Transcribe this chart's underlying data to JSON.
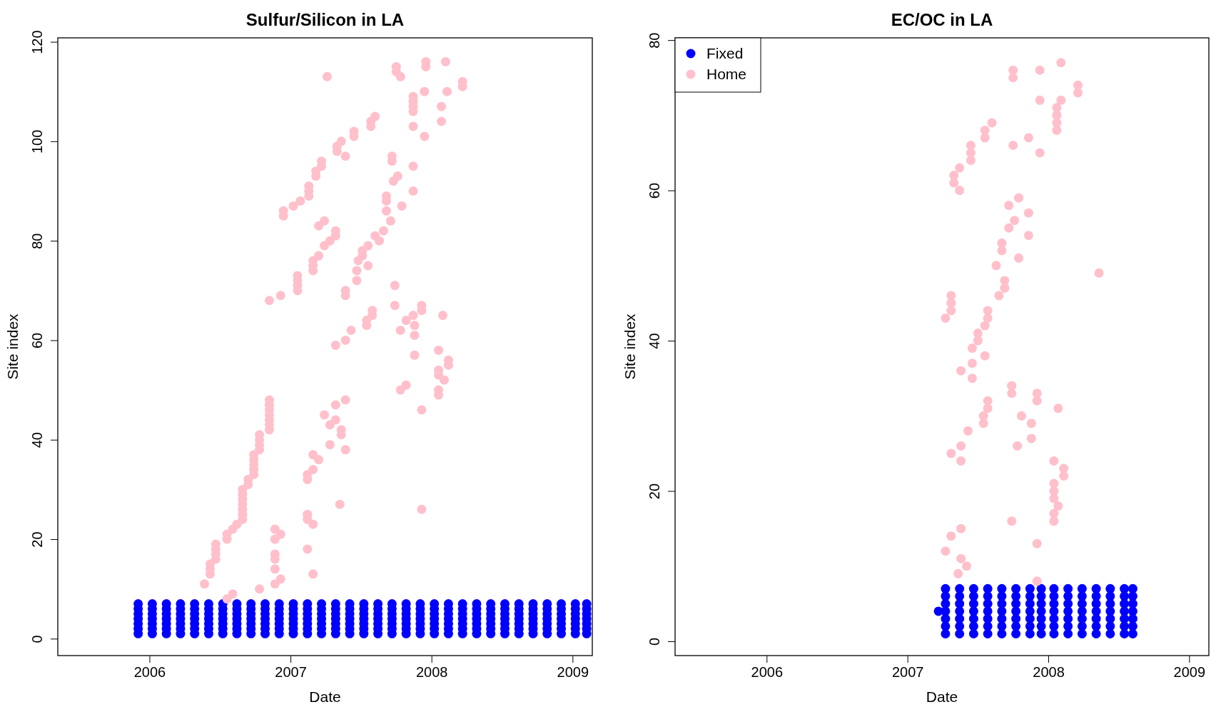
{
  "chart_data": [
    {
      "type": "scatter",
      "title": "Sulfur/Silicon in LA",
      "xlabel": "Date",
      "ylabel": "Site index",
      "xlim": [
        2005.35,
        2009.14
      ],
      "ylim": [
        -3.4,
        120.8
      ],
      "xticks": [
        2006,
        2007,
        2008,
        2009
      ],
      "yticks": [
        0,
        20,
        40,
        60,
        80,
        100,
        120
      ],
      "legend": false,
      "marker": "circle",
      "series": [
        {
          "color": "#0000ff",
          "x": [
            2005.92,
            2005.92,
            2005.92,
            2005.92,
            2005.92,
            2005.92,
            2005.92,
            2006.02,
            2006.02,
            2006.02,
            2006.02,
            2006.02,
            2006.02,
            2006.02,
            2006.12,
            2006.12,
            2006.12,
            2006.12,
            2006.12,
            2006.12,
            2006.12,
            2006.22,
            2006.22,
            2006.22,
            2006.22,
            2006.22,
            2006.22,
            2006.22,
            2006.32,
            2006.32,
            2006.32,
            2006.32,
            2006.32,
            2006.32,
            2006.32,
            2006.42,
            2006.42,
            2006.42,
            2006.42,
            2006.42,
            2006.42,
            2006.42,
            2006.52,
            2006.52,
            2006.52,
            2006.52,
            2006.52,
            2006.52,
            2006.52,
            2006.62,
            2006.62,
            2006.62,
            2006.62,
            2006.62,
            2006.62,
            2006.62,
            2006.72,
            2006.72,
            2006.72,
            2006.72,
            2006.72,
            2006.72,
            2006.72,
            2006.82,
            2006.82,
            2006.82,
            2006.82,
            2006.82,
            2006.82,
            2006.82,
            2006.92,
            2006.92,
            2006.92,
            2006.92,
            2006.92,
            2006.92,
            2006.92,
            2007.02,
            2007.02,
            2007.02,
            2007.02,
            2007.02,
            2007.02,
            2007.02,
            2007.12,
            2007.12,
            2007.12,
            2007.12,
            2007.12,
            2007.12,
            2007.12,
            2007.22,
            2007.22,
            2007.22,
            2007.22,
            2007.22,
            2007.22,
            2007.22,
            2007.32,
            2007.32,
            2007.32,
            2007.32,
            2007.32,
            2007.32,
            2007.32,
            2007.42,
            2007.42,
            2007.42,
            2007.42,
            2007.42,
            2007.42,
            2007.42,
            2007.52,
            2007.52,
            2007.52,
            2007.52,
            2007.52,
            2007.52,
            2007.52,
            2007.62,
            2007.62,
            2007.62,
            2007.62,
            2007.62,
            2007.62,
            2007.62,
            2007.72,
            2007.72,
            2007.72,
            2007.72,
            2007.72,
            2007.72,
            2007.72,
            2007.82,
            2007.82,
            2007.82,
            2007.82,
            2007.82,
            2007.82,
            2007.82,
            2007.92,
            2007.92,
            2007.92,
            2007.92,
            2007.92,
            2007.92,
            2007.92,
            2008.02,
            2008.02,
            2008.02,
            2008.02,
            2008.02,
            2008.02,
            2008.02,
            2008.12,
            2008.12,
            2008.12,
            2008.12,
            2008.12,
            2008.12,
            2008.12,
            2008.22,
            2008.22,
            2008.22,
            2008.22,
            2008.22,
            2008.22,
            2008.22,
            2008.32,
            2008.32,
            2008.32,
            2008.32,
            2008.32,
            2008.32,
            2008.32,
            2008.42,
            2008.42,
            2008.42,
            2008.42,
            2008.42,
            2008.42,
            2008.42,
            2008.52,
            2008.52,
            2008.52,
            2008.52,
            2008.52,
            2008.52,
            2008.52,
            2008.62,
            2008.62,
            2008.62,
            2008.62,
            2008.62,
            2008.62,
            2008.62,
            2008.72,
            2008.72,
            2008.72,
            2008.72,
            2008.72,
            2008.72,
            2008.72,
            2008.82,
            2008.82,
            2008.82,
            2008.82,
            2008.82,
            2008.82,
            2008.82,
            2008.92,
            2008.92,
            2008.92,
            2008.92,
            2008.92,
            2008.92,
            2008.92,
            2009.02,
            2009.02,
            2009.02,
            2009.02,
            2009.02,
            2009.02,
            2009.02,
            2009.1,
            2009.1,
            2009.1,
            2009.1,
            2009.1,
            2009.1,
            2009.1
          ],
          "values": [
            1,
            2,
            3,
            4,
            5,
            6,
            7,
            1,
            2,
            3,
            4,
            5,
            6,
            7,
            1,
            2,
            3,
            4,
            5,
            6,
            7,
            1,
            2,
            3,
            4,
            5,
            6,
            7,
            1,
            2,
            3,
            4,
            5,
            6,
            7,
            1,
            2,
            3,
            4,
            5,
            6,
            7,
            1,
            2,
            3,
            4,
            5,
            6,
            7,
            1,
            2,
            3,
            4,
            5,
            6,
            7,
            1,
            2,
            3,
            4,
            5,
            6,
            7,
            1,
            2,
            3,
            4,
            5,
            6,
            7,
            1,
            2,
            3,
            4,
            5,
            6,
            7,
            1,
            2,
            3,
            4,
            5,
            6,
            7,
            1,
            2,
            3,
            4,
            5,
            6,
            7,
            1,
            2,
            3,
            4,
            5,
            6,
            7,
            1,
            2,
            3,
            4,
            5,
            6,
            7,
            1,
            2,
            3,
            4,
            5,
            6,
            7,
            1,
            2,
            3,
            4,
            5,
            6,
            7,
            1,
            2,
            3,
            4,
            5,
            6,
            7,
            1,
            2,
            3,
            4,
            5,
            6,
            7,
            1,
            2,
            3,
            4,
            5,
            6,
            7,
            1,
            2,
            3,
            4,
            5,
            6,
            7,
            1,
            2,
            3,
            4,
            5,
            6,
            7,
            1,
            2,
            3,
            4,
            5,
            6,
            7,
            1,
            2,
            3,
            4,
            5,
            6,
            7,
            1,
            2,
            3,
            4,
            5,
            6,
            7,
            1,
            2,
            3,
            4,
            5,
            6,
            7,
            1,
            2,
            3,
            4,
            5,
            6,
            7,
            1,
            2,
            3,
            4,
            5,
            6,
            7,
            1,
            2,
            3,
            4,
            5,
            6,
            7,
            1,
            2,
            3,
            4,
            5,
            6,
            7,
            1,
            2,
            3,
            4,
            5,
            6,
            7,
            1,
            2,
            3,
            4,
            5,
            6,
            7,
            1,
            2,
            3,
            4,
            5,
            6,
            7
          ]
        },
        {
          "color": "#ffc0cb",
          "x": [
            2006.39,
            2006.43,
            2006.43,
            2006.43,
            2006.47,
            2006.47,
            2006.47,
            2006.47,
            2006.55,
            2006.55,
            2006.55,
            2006.59,
            2006.59,
            2006.62,
            2006.66,
            2006.66,
            2006.66,
            2006.66,
            2006.66,
            2006.66,
            2006.66,
            2006.7,
            2006.7,
            2006.74,
            2006.74,
            2006.74,
            2006.74,
            2006.74,
            2006.78,
            2006.78,
            2006.78,
            2006.78,
            2006.78,
            2006.85,
            2006.85,
            2006.85,
            2006.85,
            2006.85,
            2006.85,
            2006.85,
            2006.85,
            2006.89,
            2006.89,
            2006.89,
            2006.89,
            2006.89,
            2006.89,
            2006.93,
            2006.93,
            2006.93,
            2006.95,
            2006.95,
            2007.02,
            2007.05,
            2007.05,
            2007.05,
            2007.05,
            2007.07,
            2007.12,
            2007.12,
            2007.12,
            2007.12,
            2007.12,
            2007.13,
            2007.13,
            2007.13,
            2007.16,
            2007.16,
            2007.16,
            2007.16,
            2007.16,
            2007.16,
            2007.16,
            2007.18,
            2007.18,
            2007.2,
            2007.2,
            2007.2,
            2007.22,
            2007.22,
            2007.24,
            2007.24,
            2007.24,
            2007.26,
            2007.28,
            2007.28,
            2007.28,
            2007.32,
            2007.32,
            2007.32,
            2007.32,
            2007.32,
            2007.33,
            2007.33,
            2007.35,
            2007.36,
            2007.36,
            2007.36,
            2007.39,
            2007.39,
            2007.39,
            2007.39,
            2007.39,
            2007.39,
            2007.43,
            2007.45,
            2007.45,
            2007.47,
            2007.47,
            2007.48,
            2007.51,
            2007.51,
            2007.54,
            2007.54,
            2007.55,
            2007.55,
            2007.57,
            2007.57,
            2007.58,
            2007.58,
            2007.6,
            2007.6,
            2007.63,
            2007.66,
            2007.68,
            2007.68,
            2007.68,
            2007.71,
            2007.72,
            2007.72,
            2007.73,
            2007.74,
            2007.74,
            2007.75,
            2007.75,
            2007.76,
            2007.78,
            2007.78,
            2007.78,
            2007.79,
            2007.82,
            2007.82,
            2007.87,
            2007.87,
            2007.87,
            2007.87,
            2007.87,
            2007.87,
            2007.87,
            2007.87,
            2007.88,
            2007.88,
            2007.88,
            2007.93,
            2007.93,
            2007.93,
            2007.93,
            2007.95,
            2007.95,
            2007.96,
            2007.96,
            2008.05,
            2008.05,
            2008.05,
            2008.05,
            2008.05,
            2008.07,
            2008.07,
            2008.08,
            2008.09,
            2008.1,
            2008.11,
            2008.12,
            2008.12,
            2008.22,
            2008.22
          ],
          "values": [
            11,
            13,
            14,
            15,
            16,
            17,
            18,
            19,
            20,
            21,
            8,
            22,
            9,
            23,
            24,
            25,
            26,
            27,
            28,
            29,
            30,
            31,
            32,
            33,
            34,
            35,
            36,
            37,
            38,
            39,
            40,
            41,
            10,
            42,
            43,
            44,
            45,
            46,
            47,
            48,
            68,
            22,
            20,
            17,
            16,
            14,
            11,
            21,
            12,
            69,
            85,
            86,
            87,
            70,
            71,
            72,
            73,
            88,
            18,
            24,
            25,
            32,
            33,
            89,
            90,
            91,
            13,
            23,
            34,
            37,
            74,
            75,
            76,
            93,
            94,
            77,
            83,
            36,
            95,
            96,
            45,
            79,
            84,
            113,
            39,
            43,
            80,
            47,
            44,
            59,
            81,
            82,
            98,
            99,
            27,
            42,
            41,
            100,
            97,
            48,
            38,
            60,
            69,
            70,
            62,
            101,
            102,
            72,
            74,
            76,
            77,
            78,
            63,
            64,
            75,
            79,
            103,
            104,
            65,
            66,
            81,
            105,
            80,
            82,
            86,
            88,
            89,
            84,
            96,
            97,
            92,
            71,
            67,
            114,
            115,
            93,
            50,
            62,
            113,
            87,
            51,
            64,
            65,
            90,
            95,
            103,
            106,
            107,
            108,
            109,
            63,
            61,
            57,
            66,
            67,
            46,
            26,
            101,
            110,
            115,
            116,
            58,
            54,
            53,
            50,
            49,
            104,
            107,
            65,
            52,
            116,
            110,
            55,
            56,
            111,
            112
          ]
        }
      ]
    },
    {
      "type": "scatter",
      "title": "EC/OC in LA",
      "xlabel": "Date",
      "ylabel": "Site index",
      "xlim": [
        2005.35,
        2009.14
      ],
      "ylim": [
        -1.9,
        80.3
      ],
      "xticks": [
        2006,
        2007,
        2008,
        2009
      ],
      "yticks": [
        0,
        20,
        40,
        60,
        80
      ],
      "legend": "top left",
      "marker": "circle",
      "series": [
        {
          "name": "Fixed",
          "color": "#0000ff",
          "x": [
            2007.22,
            2007.27,
            2007.27,
            2007.27,
            2007.27,
            2007.27,
            2007.27,
            2007.27,
            2007.37,
            2007.37,
            2007.37,
            2007.37,
            2007.37,
            2007.37,
            2007.37,
            2007.47,
            2007.47,
            2007.47,
            2007.47,
            2007.47,
            2007.47,
            2007.47,
            2007.57,
            2007.57,
            2007.57,
            2007.57,
            2007.57,
            2007.57,
            2007.57,
            2007.67,
            2007.67,
            2007.67,
            2007.67,
            2007.67,
            2007.67,
            2007.67,
            2007.77,
            2007.77,
            2007.77,
            2007.77,
            2007.77,
            2007.77,
            2007.77,
            2007.87,
            2007.87,
            2007.87,
            2007.87,
            2007.87,
            2007.87,
            2007.87,
            2007.95,
            2007.95,
            2007.95,
            2007.95,
            2007.95,
            2007.95,
            2007.95,
            2008.04,
            2008.04,
            2008.04,
            2008.04,
            2008.04,
            2008.04,
            2008.04,
            2008.14,
            2008.14,
            2008.14,
            2008.14,
            2008.14,
            2008.14,
            2008.14,
            2008.24,
            2008.24,
            2008.24,
            2008.24,
            2008.24,
            2008.24,
            2008.24,
            2008.34,
            2008.34,
            2008.34,
            2008.34,
            2008.34,
            2008.34,
            2008.34,
            2008.44,
            2008.44,
            2008.44,
            2008.44,
            2008.44,
            2008.44,
            2008.44,
            2008.54,
            2008.54,
            2008.54,
            2008.54,
            2008.54,
            2008.54,
            2008.54,
            2008.6,
            2008.6,
            2008.6,
            2008.6,
            2008.6,
            2008.6,
            2008.6
          ],
          "values": [
            4,
            1,
            2,
            3,
            4,
            5,
            6,
            7,
            1,
            2,
            3,
            4,
            5,
            6,
            7,
            1,
            2,
            3,
            4,
            5,
            6,
            7,
            1,
            2,
            3,
            4,
            5,
            6,
            7,
            1,
            2,
            3,
            4,
            5,
            6,
            7,
            1,
            2,
            3,
            4,
            5,
            6,
            7,
            1,
            2,
            3,
            4,
            5,
            6,
            7,
            1,
            2,
            3,
            4,
            5,
            6,
            7,
            1,
            2,
            3,
            4,
            5,
            6,
            7,
            1,
            2,
            3,
            4,
            5,
            6,
            7,
            1,
            2,
            3,
            4,
            5,
            6,
            7,
            1,
            2,
            3,
            4,
            5,
            6,
            7,
            1,
            2,
            3,
            4,
            5,
            6,
            7,
            1,
            2,
            3,
            4,
            5,
            6,
            7,
            1,
            2,
            3,
            4,
            5,
            6,
            7
          ]
        },
        {
          "name": "Home",
          "color": "#ffc0cb",
          "x": [
            2007.27,
            2007.27,
            2007.31,
            2007.31,
            2007.31,
            2007.31,
            2007.31,
            2007.33,
            2007.33,
            2007.36,
            2007.37,
            2007.37,
            2007.38,
            2007.38,
            2007.38,
            2007.38,
            2007.38,
            2007.42,
            2007.43,
            2007.45,
            2007.45,
            2007.45,
            2007.46,
            2007.46,
            2007.46,
            2007.5,
            2007.5,
            2007.54,
            2007.54,
            2007.55,
            2007.55,
            2007.55,
            2007.55,
            2007.57,
            2007.57,
            2007.57,
            2007.57,
            2007.6,
            2007.63,
            2007.65,
            2007.67,
            2007.67,
            2007.69,
            2007.69,
            2007.72,
            2007.72,
            2007.74,
            2007.74,
            2007.74,
            2007.75,
            2007.75,
            2007.75,
            2007.76,
            2007.78,
            2007.79,
            2007.79,
            2007.81,
            2007.86,
            2007.86,
            2007.86,
            2007.88,
            2007.88,
            2007.92,
            2007.92,
            2007.92,
            2007.92,
            2007.94,
            2007.94,
            2007.94,
            2008.04,
            2008.04,
            2008.04,
            2008.04,
            2008.04,
            2008.04,
            2008.06,
            2008.06,
            2008.06,
            2008.06,
            2008.07,
            2008.07,
            2008.09,
            2008.09,
            2008.11,
            2008.11,
            2008.21,
            2008.21,
            2008.36
          ],
          "values": [
            43,
            12,
            46,
            45,
            44,
            14,
            25,
            62,
            61,
            9,
            63,
            60,
            15,
            11,
            26,
            24,
            36,
            10,
            28,
            66,
            65,
            64,
            35,
            37,
            39,
            40,
            41,
            30,
            29,
            42,
            38,
            68,
            67,
            31,
            32,
            44,
            43,
            69,
            50,
            46,
            53,
            52,
            47,
            48,
            58,
            55,
            34,
            33,
            16,
            76,
            75,
            66,
            56,
            26,
            59,
            51,
            30,
            67,
            57,
            54,
            29,
            27,
            33,
            32,
            13,
            8,
            76,
            72,
            65,
            24,
            21,
            20,
            19,
            17,
            16,
            71,
            70,
            69,
            68,
            18,
            31,
            77,
            72,
            23,
            22,
            74,
            73,
            49
          ]
        }
      ]
    }
  ]
}
